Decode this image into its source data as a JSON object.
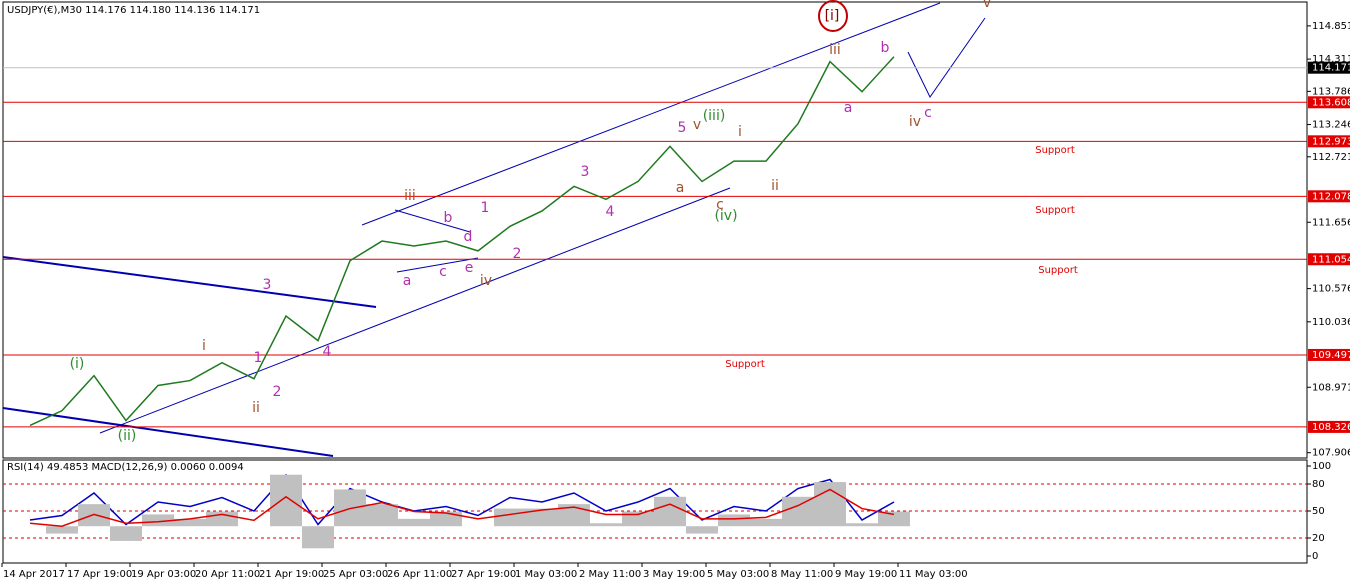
{
  "chart_data": [
    {
      "type": "line",
      "title": "USDJPY(€),M30 114.176 114.180 114.136 114.171",
      "categories": [
        "14 Apr 2017",
        null,
        "17 Apr 19:00",
        null,
        "19 Apr 03:00",
        null,
        "20 Apr 11:00",
        null,
        "21 Apr 19:00",
        null,
        "25 Apr 03:00",
        null,
        "26 Apr 11:00",
        null,
        "27 Apr 19:00",
        null,
        "1 May 03:00",
        null,
        "2 May 11:00",
        null,
        "3 May 19:00",
        null,
        "5 May 03:00",
        null,
        "8 May 11:00",
        null,
        "9 May 19:00",
        null,
        "11 May 03:00"
      ],
      "series": [
        {
          "color": "#1f7a1f",
          "values": [
            108.35,
            108.59,
            109.16,
            108.43,
            109.0,
            109.08,
            109.37,
            109.11,
            110.13,
            109.73,
            111.03,
            111.35,
            111.27,
            111.35,
            111.19,
            111.59,
            111.84,
            112.24,
            112.03,
            112.32,
            112.89,
            112.32,
            112.65,
            112.65,
            113.26,
            114.27,
            113.78,
            114.35,
            null
          ]
        }
      ],
      "ylim": [
        107.82,
        115.24
      ],
      "yticks": [
        114.851,
        114.311,
        113.786,
        113.246,
        112.721,
        111.656,
        110.576,
        110.036,
        108.971,
        107.906
      ],
      "levels": [
        113.608,
        112.973,
        112.078,
        111.054,
        109.497,
        108.326
      ],
      "level_color": "#e00000",
      "last": 114.171,
      "support_labels": [
        "Support",
        "Support",
        "Support",
        "Support"
      ],
      "annotations": [
        {
          "text": "[i]",
          "color": "#8b0000"
        },
        {
          "text": "iii",
          "color": "#a0522d"
        },
        {
          "text": "b",
          "color": "#b030b0"
        },
        {
          "text": "a",
          "color": "#b030b0"
        },
        {
          "text": "iv",
          "color": "#a0522d"
        },
        {
          "text": "c",
          "color": "#b030b0"
        },
        {
          "text": "v",
          "color": "#a0522d"
        },
        {
          "text": "5",
          "color": "#b030b0"
        },
        {
          "text": "v",
          "color": "#a0522d"
        },
        {
          "text": "(iii)",
          "color": "#2e8b2e"
        },
        {
          "text": "i",
          "color": "#a0522d"
        },
        {
          "text": "a",
          "color": "#a0522d"
        },
        {
          "text": "c",
          "color": "#a0522d"
        },
        {
          "text": "(iv)",
          "color": "#2e8b2e"
        },
        {
          "text": "ii",
          "color": "#a0522d"
        },
        {
          "text": "3",
          "color": "#b030b0"
        },
        {
          "text": "4",
          "color": "#b030b0"
        },
        {
          "text": "1",
          "color": "#b030b0"
        },
        {
          "text": "2",
          "color": "#b030b0"
        },
        {
          "text": "iii",
          "color": "#a0522d"
        },
        {
          "text": "b",
          "color": "#b030b0"
        },
        {
          "text": "d",
          "color": "#b030b0"
        },
        {
          "text": "a",
          "color": "#b030b0"
        },
        {
          "text": "c",
          "color": "#b030b0"
        },
        {
          "text": "e",
          "color": "#b030b0"
        },
        {
          "text": "iv",
          "color": "#a0522d"
        },
        {
          "text": "3",
          "color": "#b030b0"
        },
        {
          "text": "4",
          "color": "#b030b0"
        },
        {
          "text": "i",
          "color": "#a0522d"
        },
        {
          "text": "1",
          "color": "#b030b0"
        },
        {
          "text": "2",
          "color": "#b030b0"
        },
        {
          "text": "ii",
          "color": "#a0522d"
        },
        {
          "text": "(i)",
          "color": "#2e8b2e"
        },
        {
          "text": "(ii)",
          "color": "#2e8b2e"
        }
      ]
    },
    {
      "type": "line",
      "title": "RSI(14) 49.4853 MACD(12,26,9) 0.0060 0.0094",
      "series": [
        {
          "color": "#0000c8",
          "values": [
            40,
            45,
            70,
            35,
            60,
            55,
            65,
            50,
            90,
            35,
            75,
            60,
            50,
            55,
            45,
            65,
            60,
            70,
            50,
            60,
            75,
            40,
            55,
            50,
            75,
            85,
            40,
            60,
            null
          ]
        },
        {
          "color": "#c0c0c0",
          "type": "bar",
          "axis": "y2",
          "values": [
            0,
            -0.05,
            0.15,
            -0.1,
            0.08,
            0.05,
            0.1,
            0,
            0.35,
            -0.15,
            0.25,
            0.15,
            0.05,
            0.1,
            0,
            0.12,
            0.12,
            0.15,
            0.02,
            0.1,
            0.2,
            -0.05,
            0.08,
            0.05,
            0.2,
            0.3,
            0.02,
            0.1,
            null
          ]
        },
        {
          "color": "#e00000",
          "axis": "y2",
          "values": [
            0.02,
            0,
            0.08,
            0.02,
            0.03,
            0.05,
            0.08,
            0.04,
            0.2,
            0.05,
            0.12,
            0.16,
            0.1,
            0.09,
            0.05,
            0.08,
            0.11,
            0.13,
            0.08,
            0.08,
            0.15,
            0.05,
            0.05,
            0.06,
            0.14,
            0.25,
            0.12,
            0.08,
            null
          ]
        }
      ],
      "ylim": [
        -7.8,
        106.7
      ],
      "yticks": [
        100,
        80,
        50,
        20,
        0
      ],
      "levels": [
        80,
        50,
        20
      ],
      "y2lim": [
        -0.25,
        0.45
      ]
    }
  ]
}
